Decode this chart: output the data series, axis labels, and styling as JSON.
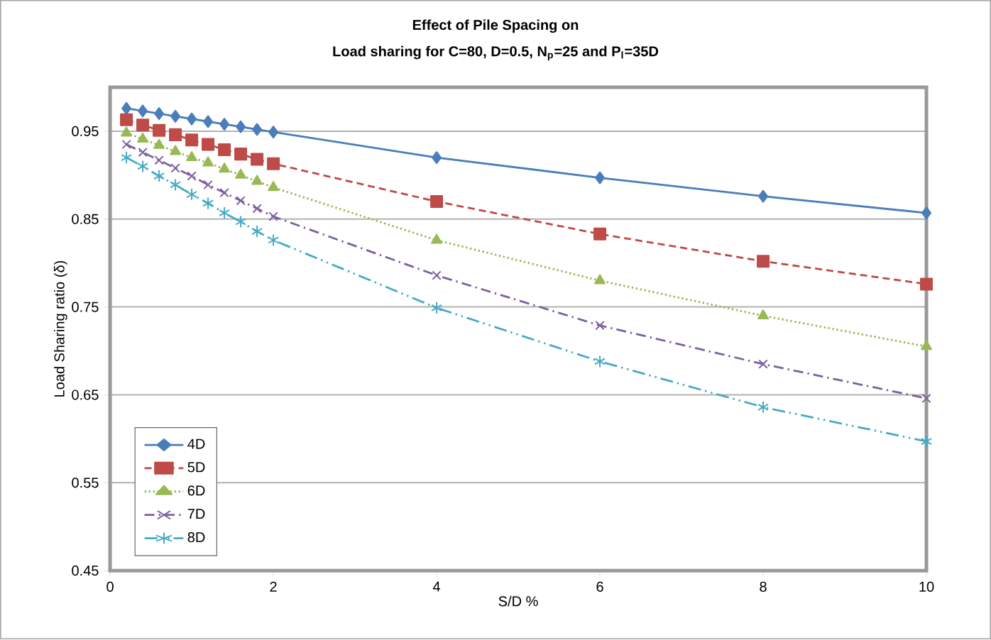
{
  "chart_data": {
    "type": "line",
    "title": "Effect of Pile Spacing on",
    "subtitle": "Load sharing for C=80, D=0.5, N$_{p}$=25 and P$_{l}$=35D",
    "xlabel": "S/D %",
    "ylabel": "Load Sharing ratio (δ)",
    "x": [
      0.2,
      0.4,
      0.6,
      0.8,
      1.0,
      1.2,
      1.4,
      1.6,
      1.8,
      2.0,
      4,
      6,
      8,
      10
    ],
    "series": [
      {
        "name": "4D",
        "color": "#4a7ebb",
        "marker": "diamond",
        "line_style": "solid",
        "values": [
          0.976,
          0.973,
          0.97,
          0.967,
          0.964,
          0.961,
          0.958,
          0.955,
          0.952,
          0.949,
          0.92,
          0.897,
          0.876,
          0.857
        ]
      },
      {
        "name": "5D",
        "color": "#be4b48",
        "marker": "square",
        "line_style": "dashed",
        "values": [
          0.963,
          0.957,
          0.951,
          0.946,
          0.94,
          0.935,
          0.929,
          0.924,
          0.918,
          0.913,
          0.87,
          0.833,
          0.802,
          0.776
        ]
      },
      {
        "name": "6D",
        "color": "#98b954",
        "marker": "triangle",
        "line_style": "dotted",
        "values": [
          0.948,
          0.941,
          0.934,
          0.927,
          0.92,
          0.914,
          0.907,
          0.9,
          0.893,
          0.886,
          0.826,
          0.78,
          0.74,
          0.705
        ]
      },
      {
        "name": "7D",
        "color": "#7d60a0",
        "marker": "cross",
        "line_style": "dashdot",
        "values": [
          0.935,
          0.926,
          0.917,
          0.908,
          0.899,
          0.889,
          0.88,
          0.871,
          0.862,
          0.853,
          0.786,
          0.729,
          0.685,
          0.646
        ]
      },
      {
        "name": "8D",
        "color": "#46aac5",
        "marker": "cross",
        "line_style": "dashdotdot",
        "values": [
          0.92,
          0.91,
          0.899,
          0.889,
          0.878,
          0.868,
          0.857,
          0.847,
          0.836,
          0.826,
          0.749,
          0.688,
          0.636,
          0.597
        ]
      }
    ],
    "xlim": [
      0,
      10
    ],
    "ylim": [
      0.45,
      1.0
    ],
    "xticks": [
      0,
      2,
      4,
      6,
      8,
      10
    ],
    "yticks": [
      0.45,
      0.55,
      0.65,
      0.75,
      0.85,
      0.95
    ],
    "grid": "y",
    "legend": "bottom left"
  }
}
